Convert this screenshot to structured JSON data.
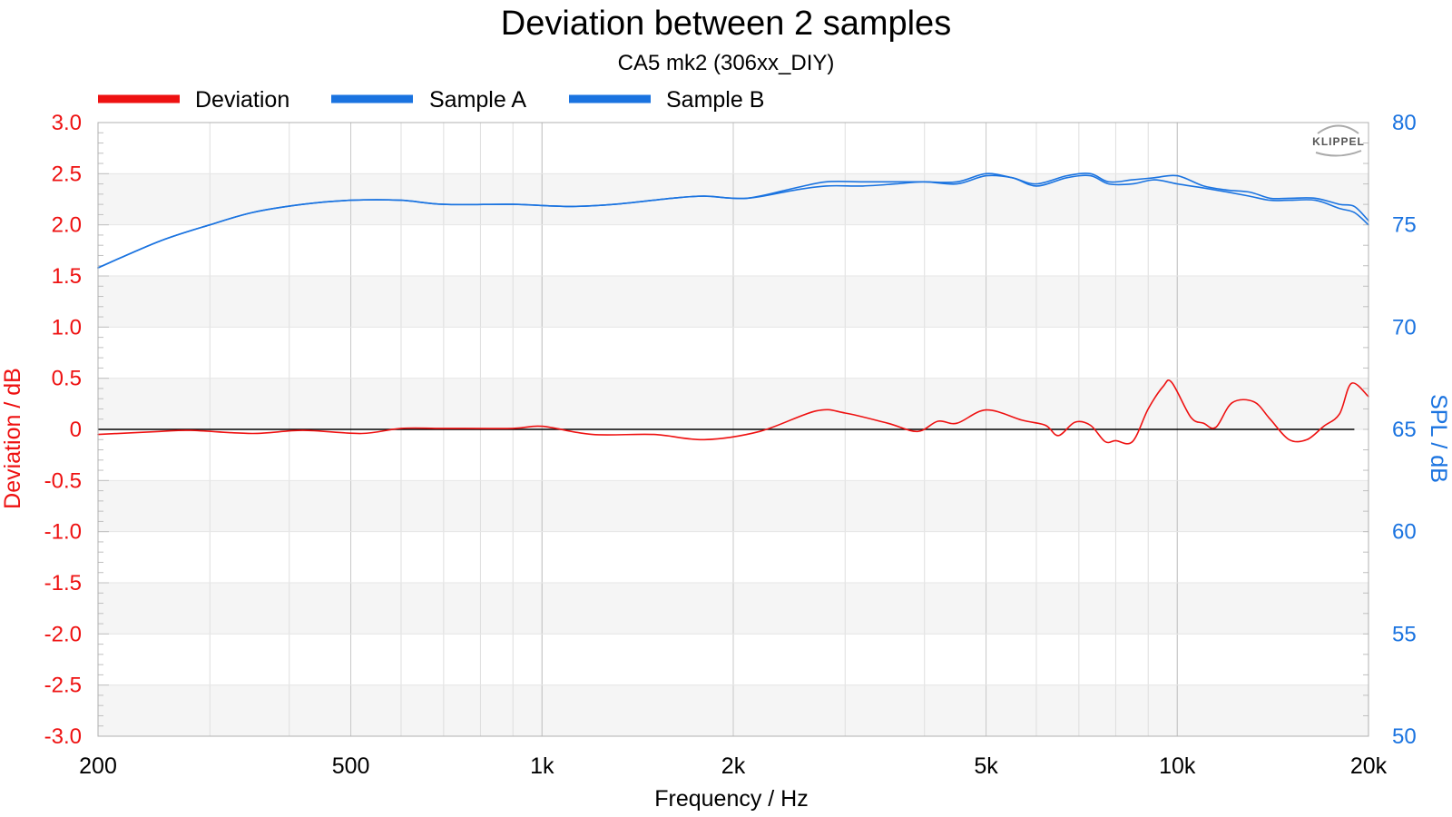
{
  "chart_data": {
    "type": "line",
    "title": "Deviation between 2 samples",
    "subtitle": "CA5 mk2 (306xx_DIY)",
    "xlabel": "Frequency / Hz",
    "ylabel_left": "Deviation / dB",
    "ylabel_right": "SPL / dB",
    "xscale": "log",
    "xlim": [
      200,
      20000
    ],
    "ylim_left": [
      -3.0,
      3.0
    ],
    "ylim_right": [
      50,
      80
    ],
    "grid": true,
    "legend_position": "top-left",
    "x_ticks": [
      {
        "value": 200,
        "label": "200"
      },
      {
        "value": 500,
        "label": "500"
      },
      {
        "value": 1000,
        "label": "1k"
      },
      {
        "value": 2000,
        "label": "2k"
      },
      {
        "value": 5000,
        "label": "5k"
      },
      {
        "value": 10000,
        "label": "10k"
      },
      {
        "value": 20000,
        "label": "20k"
      }
    ],
    "y_ticks_left": [
      "3.0",
      "2.5",
      "2.0",
      "1.5",
      "1.0",
      "0.5",
      "0",
      "-0.5",
      "-1.0",
      "-1.5",
      "-2.0",
      "-2.5",
      "-3.0"
    ],
    "y_ticks_right": [
      "80",
      "75",
      "70",
      "65",
      "60",
      "55",
      "50"
    ],
    "colors": {
      "deviation": "#ee1111",
      "sample_a": "#1a73e0",
      "sample_b": "#1a73e0",
      "left_axis": "#ee1111",
      "right_axis": "#1a73e0",
      "reference": "#000000"
    },
    "series": [
      {
        "name": "Deviation",
        "axis": "left",
        "x": [
          200,
          250,
          280,
          350,
          420,
          520,
          600,
          700,
          900,
          1000,
          1200,
          1500,
          1800,
          2200,
          2700,
          3000,
          3500,
          3900,
          4200,
          4500,
          5000,
          5700,
          6200,
          6500,
          6900,
          7300,
          7700,
          8000,
          8500,
          9000,
          9500,
          9800,
          10500,
          11000,
          11500,
          12200,
          13200,
          14000,
          15000,
          16000,
          17000,
          18000,
          18800,
          20000
        ],
        "y": [
          -0.05,
          -0.02,
          -0.01,
          -0.04,
          -0.01,
          -0.04,
          0.01,
          0.01,
          0.01,
          0.03,
          -0.05,
          -0.05,
          -0.1,
          -0.02,
          0.18,
          0.16,
          0.06,
          -0.02,
          0.08,
          0.06,
          0.19,
          0.09,
          0.04,
          -0.06,
          0.07,
          0.04,
          -0.12,
          -0.11,
          -0.12,
          0.2,
          0.42,
          0.46,
          0.12,
          0.06,
          0.02,
          0.26,
          0.27,
          0.1,
          -0.1,
          -0.1,
          0.03,
          0.15,
          0.45,
          0.32
        ]
      },
      {
        "name": "Sample A",
        "axis": "right",
        "x": [
          200,
          250,
          300,
          350,
          420,
          500,
          600,
          700,
          900,
          1100,
          1300,
          1600,
          1800,
          2100,
          2500,
          2800,
          3200,
          3600,
          4000,
          4500,
          5000,
          5500,
          6000,
          6700,
          7300,
          7800,
          8500,
          9200,
          10000,
          11000,
          12000,
          13000,
          14000,
          15000,
          16500,
          18000,
          19000,
          20000
        ],
        "y": [
          72.9,
          74.2,
          75.0,
          75.6,
          76.0,
          76.2,
          76.2,
          76.0,
          76.0,
          75.9,
          76.0,
          76.3,
          76.4,
          76.3,
          76.7,
          76.9,
          76.9,
          77.0,
          77.1,
          77.0,
          77.4,
          77.3,
          76.9,
          77.3,
          77.4,
          77.0,
          77.0,
          77.2,
          77.0,
          76.8,
          76.6,
          76.4,
          76.2,
          76.2,
          76.2,
          75.8,
          75.6,
          75.0
        ]
      },
      {
        "name": "Sample B",
        "axis": "right",
        "x": [
          200,
          250,
          300,
          350,
          420,
          500,
          600,
          700,
          900,
          1100,
          1300,
          1600,
          1800,
          2100,
          2500,
          2800,
          3200,
          3600,
          4000,
          4500,
          5000,
          5500,
          6000,
          6700,
          7300,
          7800,
          8500,
          9200,
          10000,
          11000,
          12000,
          13000,
          14000,
          15000,
          16500,
          18000,
          19000,
          20000
        ],
        "y": [
          72.9,
          74.2,
          75.0,
          75.6,
          76.0,
          76.2,
          76.2,
          76.0,
          76.0,
          75.9,
          76.0,
          76.3,
          76.4,
          76.3,
          76.8,
          77.1,
          77.1,
          77.1,
          77.1,
          77.1,
          77.5,
          77.3,
          77.0,
          77.4,
          77.5,
          77.1,
          77.2,
          77.3,
          77.4,
          76.9,
          76.7,
          76.6,
          76.3,
          76.3,
          76.3,
          76.0,
          75.9,
          75.2
        ]
      }
    ]
  },
  "logo": {
    "text": "KLIPPEL"
  }
}
